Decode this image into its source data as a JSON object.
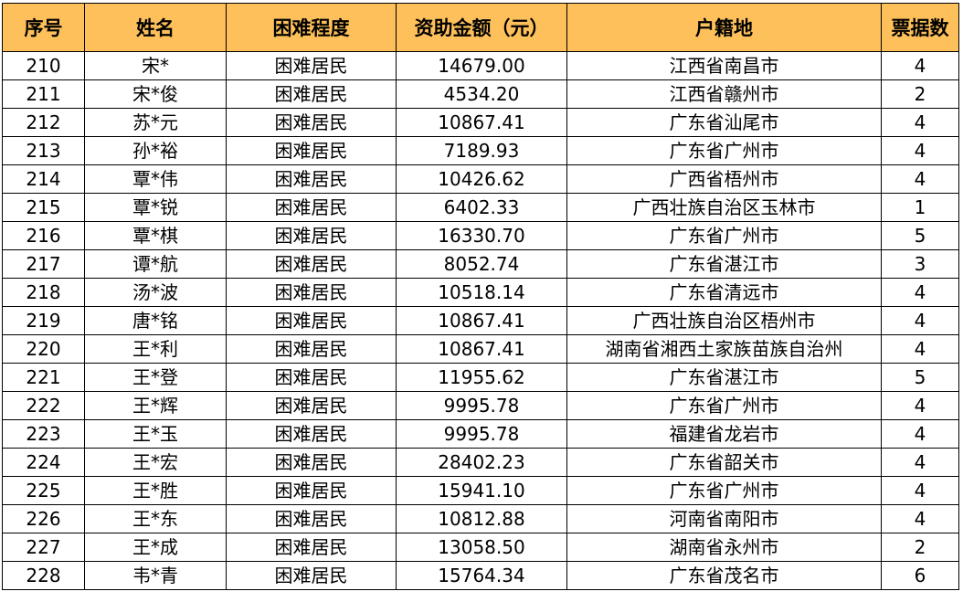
{
  "columns": [
    "序号",
    "姓名",
    "困难程度",
    "资助金额（元）",
    "户籍地",
    "票据数"
  ],
  "rows": [
    [
      "210",
      "宋*",
      "困难居民",
      "14679.00",
      "江西省南昌市",
      "4"
    ],
    [
      "211",
      "宋*俊",
      "困难居民",
      "4534.20",
      "江西省赣州市",
      "2"
    ],
    [
      "212",
      "苏*元",
      "困难居民",
      "10867.41",
      "广东省汕尾市",
      "4"
    ],
    [
      "213",
      "孙*裕",
      "困难居民",
      "7189.93",
      "广东省广州市",
      "4"
    ],
    [
      "214",
      "覃*伟",
      "困难居民",
      "10426.62",
      "广西省梧州市",
      "4"
    ],
    [
      "215",
      "覃*锐",
      "困难居民",
      "6402.33",
      "广西壮族自治区玉林市",
      "1"
    ],
    [
      "216",
      "覃*棋",
      "困难居民",
      "16330.70",
      "广东省广州市",
      "5"
    ],
    [
      "217",
      "谭*航",
      "困难居民",
      "8052.74",
      "广东省湛江市",
      "3"
    ],
    [
      "218",
      "汤*波",
      "困难居民",
      "10518.14",
      "广东省清远市",
      "4"
    ],
    [
      "219",
      "唐*铭",
      "困难居民",
      "10867.41",
      "广西壮族自治区梧州市",
      "4"
    ],
    [
      "220",
      "王*利",
      "困难居民",
      "10867.41",
      "湖南省湘西土家族苗族自治州",
      "4"
    ],
    [
      "221",
      "王*登",
      "困难居民",
      "11955.62",
      "广东省湛江市",
      "5"
    ],
    [
      "222",
      "王*辉",
      "困难居民",
      "9995.78",
      "广东省广州市",
      "4"
    ],
    [
      "223",
      "王*玉",
      "困难居民",
      "9995.78",
      "福建省龙岩市",
      "4"
    ],
    [
      "224",
      "王*宏",
      "困难居民",
      "28402.23",
      "广东省韶关市",
      "4"
    ],
    [
      "225",
      "王*胜",
      "困难居民",
      "15941.10",
      "广东省广州市",
      "4"
    ],
    [
      "226",
      "王*东",
      "困难居民",
      "10812.88",
      "河南省南阳市",
      "4"
    ],
    [
      "227",
      "王*成",
      "困难居民",
      "13058.50",
      "湖南省永州市",
      "2"
    ],
    [
      "228",
      "韦*青",
      "困难居民",
      "15764.34",
      "广东省茂名市",
      "6"
    ]
  ]
}
